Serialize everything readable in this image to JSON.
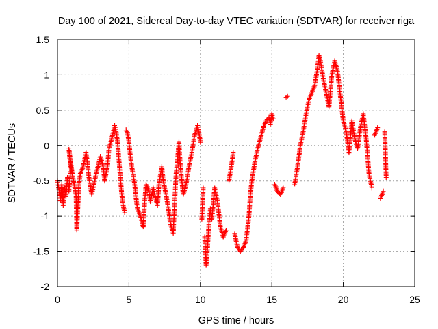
{
  "chart_data": {
    "type": "scatter",
    "title": "Day 100 of 2021, Sidereal Day-to-day VTEC variation (SDTVAR) for receiver riga",
    "xlabel": "GPS time / hours",
    "ylabel": "SDTVAR / TECUs",
    "xlim": [
      0,
      25
    ],
    "ylim": [
      -2,
      1.5
    ],
    "xticks": [
      0,
      5,
      10,
      15,
      20,
      25
    ],
    "yticks": [
      -2,
      -1.5,
      -1,
      -0.5,
      0,
      0.5,
      1,
      1.5
    ],
    "xtick_labels": [
      "0",
      "5",
      "10",
      "15",
      "20",
      "25"
    ],
    "ytick_labels": [
      "-2",
      "-1.5",
      "-1",
      "-0.5",
      "0",
      "0.5",
      "1",
      "1.5"
    ],
    "grid": true,
    "marker": "+",
    "marker_color": "#ff0000",
    "series": [
      {
        "name": "SDTVAR",
        "points": [
          [
            0.0,
            -0.5
          ],
          [
            0.1,
            -0.62
          ],
          [
            0.2,
            -0.78
          ],
          [
            0.3,
            -0.55
          ],
          [
            0.4,
            -0.85
          ],
          [
            0.5,
            -0.6
          ],
          [
            0.6,
            -0.72
          ],
          [
            0.7,
            -0.45
          ],
          [
            0.8,
            -0.65
          ],
          [
            0.9,
            -0.4
          ],
          [
            1.0,
            -0.35
          ],
          [
            0.8,
            -0.05
          ],
          [
            0.9,
            -0.25
          ],
          [
            1.3,
            -0.7
          ],
          [
            1.35,
            -1.2
          ],
          [
            1.5,
            -0.55
          ],
          [
            1.6,
            -0.4
          ],
          [
            1.8,
            -0.3
          ],
          [
            2.0,
            -0.1
          ],
          [
            2.1,
            -0.25
          ],
          [
            2.2,
            -0.45
          ],
          [
            2.4,
            -0.7
          ],
          [
            2.5,
            -0.6
          ],
          [
            2.7,
            -0.4
          ],
          [
            2.9,
            -0.25
          ],
          [
            3.0,
            -0.15
          ],
          [
            3.2,
            -0.3
          ],
          [
            3.3,
            -0.5
          ],
          [
            3.5,
            -0.3
          ],
          [
            3.6,
            -0.05
          ],
          [
            3.8,
            0.1
          ],
          [
            4.0,
            0.28
          ],
          [
            4.1,
            0.2
          ],
          [
            4.2,
            0.05
          ],
          [
            4.3,
            -0.2
          ],
          [
            4.4,
            -0.45
          ],
          [
            4.5,
            -0.7
          ],
          [
            4.6,
            -0.85
          ],
          [
            4.7,
            -0.95
          ],
          [
            4.8,
            0.22
          ],
          [
            4.9,
            0.18
          ],
          [
            5.0,
            0.05
          ],
          [
            5.1,
            -0.15
          ],
          [
            5.2,
            -0.3
          ],
          [
            5.4,
            -0.55
          ],
          [
            5.5,
            -0.75
          ],
          [
            5.6,
            -0.9
          ],
          [
            5.8,
            -1.0
          ],
          [
            6.0,
            -1.15
          ],
          [
            6.1,
            -0.8
          ],
          [
            6.2,
            -0.55
          ],
          [
            6.4,
            -0.65
          ],
          [
            6.5,
            -0.8
          ],
          [
            6.7,
            -0.6
          ],
          [
            6.8,
            -0.7
          ],
          [
            7.0,
            -0.85
          ],
          [
            7.1,
            -0.55
          ],
          [
            7.3,
            -0.3
          ],
          [
            7.4,
            -0.5
          ],
          [
            7.6,
            -0.7
          ],
          [
            7.8,
            -0.95
          ],
          [
            7.9,
            -1.1
          ],
          [
            8.1,
            -1.25
          ],
          [
            8.2,
            -0.8
          ],
          [
            8.3,
            -0.4
          ],
          [
            8.4,
            -0.2
          ],
          [
            8.5,
            0.05
          ],
          [
            8.6,
            -0.3
          ],
          [
            8.8,
            -0.7
          ],
          [
            9.0,
            -0.55
          ],
          [
            9.2,
            -0.3
          ],
          [
            9.4,
            -0.1
          ],
          [
            9.6,
            0.15
          ],
          [
            9.8,
            0.28
          ],
          [
            9.9,
            0.18
          ],
          [
            10.0,
            0.05
          ],
          [
            10.1,
            -1.05
          ],
          [
            10.2,
            -0.6
          ],
          [
            10.3,
            -1.3
          ],
          [
            10.4,
            -1.7
          ],
          [
            10.5,
            -1.45
          ],
          [
            10.6,
            -1.1
          ],
          [
            10.7,
            -0.9
          ],
          [
            10.8,
            -1.05
          ],
          [
            11.0,
            -0.6
          ],
          [
            11.2,
            -0.8
          ],
          [
            11.4,
            -1.15
          ],
          [
            11.6,
            -1.3
          ],
          [
            11.8,
            -1.2
          ],
          [
            12.0,
            -0.5
          ],
          [
            12.2,
            -0.25
          ],
          [
            12.3,
            -0.1
          ],
          [
            12.4,
            -1.25
          ],
          [
            12.6,
            -1.45
          ],
          [
            12.8,
            -1.5
          ],
          [
            13.0,
            -1.45
          ],
          [
            13.2,
            -1.35
          ],
          [
            13.4,
            -1.0
          ],
          [
            13.5,
            -0.7
          ],
          [
            13.6,
            -0.5
          ],
          [
            13.8,
            -0.25
          ],
          [
            14.0,
            -0.05
          ],
          [
            14.2,
            0.1
          ],
          [
            14.4,
            0.25
          ],
          [
            14.6,
            0.35
          ],
          [
            14.8,
            0.4
          ],
          [
            14.9,
            0.3
          ],
          [
            15.0,
            0.45
          ],
          [
            15.1,
            0.38
          ],
          [
            15.2,
            -0.55
          ],
          [
            15.4,
            -0.65
          ],
          [
            15.6,
            -0.7
          ],
          [
            15.8,
            -0.6
          ],
          [
            16.0,
            0.68
          ],
          [
            16.1,
            0.7
          ],
          [
            16.6,
            -0.55
          ],
          [
            16.8,
            -0.3
          ],
          [
            17.0,
            0.0
          ],
          [
            17.2,
            0.2
          ],
          [
            17.4,
            0.45
          ],
          [
            17.6,
            0.65
          ],
          [
            17.8,
            0.75
          ],
          [
            18.0,
            0.85
          ],
          [
            18.2,
            1.1
          ],
          [
            18.3,
            1.28
          ],
          [
            18.4,
            1.2
          ],
          [
            18.6,
            0.95
          ],
          [
            18.8,
            0.75
          ],
          [
            19.0,
            0.55
          ],
          [
            19.2,
            1.0
          ],
          [
            19.4,
            1.2
          ],
          [
            19.6,
            1.05
          ],
          [
            19.8,
            0.7
          ],
          [
            20.0,
            0.35
          ],
          [
            20.2,
            0.2
          ],
          [
            20.4,
            -0.1
          ],
          [
            20.6,
            0.35
          ],
          [
            20.8,
            0.1
          ],
          [
            21.0,
            -0.05
          ],
          [
            21.2,
            0.25
          ],
          [
            21.4,
            0.45
          ],
          [
            21.6,
            0.1
          ],
          [
            21.8,
            -0.4
          ],
          [
            22.0,
            -0.6
          ],
          [
            22.2,
            0.15
          ],
          [
            22.4,
            0.25
          ],
          [
            22.6,
            -0.75
          ],
          [
            22.8,
            -0.65
          ],
          [
            22.9,
            0.2
          ],
          [
            23.0,
            -0.45
          ]
        ]
      }
    ]
  }
}
